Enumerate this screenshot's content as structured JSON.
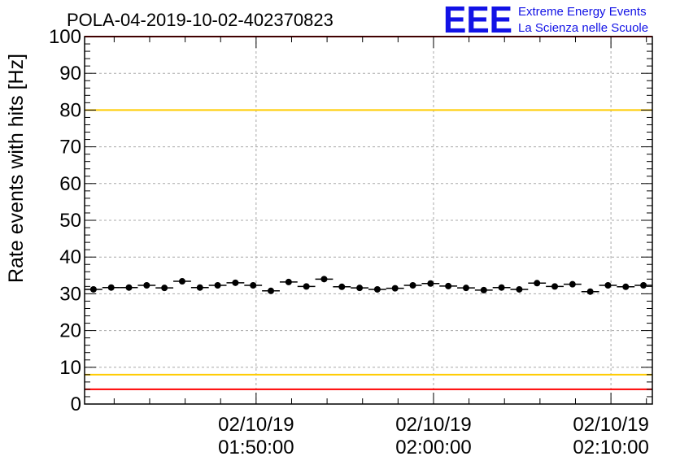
{
  "chart_data": {
    "type": "scatter",
    "title": "POLA-04-2019-10-02-402370823",
    "ylabel": "Rate events with hits [Hz]",
    "xlabel": "",
    "ylim": [
      0,
      100
    ],
    "yticks": [
      "0",
      "10",
      "20",
      "30",
      "40",
      "50",
      "60",
      "70",
      "80",
      "90",
      "100"
    ],
    "xlim": [
      "01:40:20",
      "02:12:20"
    ],
    "xticks": [
      {
        "time": "01:50:00",
        "date_label": "02/10/19",
        "time_label": "01:50:00"
      },
      {
        "time": "02:00:00",
        "date_label": "02/10/19",
        "time_label": "02:00:00"
      },
      {
        "time": "02:10:00",
        "date_label": "02/10/19",
        "time_label": "02:10:00"
      }
    ],
    "grid": true,
    "reference_lines": [
      {
        "y": 100,
        "color": "#ff0000"
      },
      {
        "y": 80,
        "color": "#ffcc00"
      },
      {
        "y": 8,
        "color": "#ffcc00"
      },
      {
        "y": 4,
        "color": "#ff0000"
      }
    ],
    "bin_width_seconds": 60,
    "series": [
      {
        "color": "#000000",
        "x": [
          "01:40:50",
          "01:41:50",
          "01:42:50",
          "01:43:50",
          "01:44:50",
          "01:45:50",
          "01:46:50",
          "01:47:50",
          "01:48:50",
          "01:49:50",
          "01:50:50",
          "01:51:50",
          "01:52:50",
          "01:53:50",
          "01:54:50",
          "01:55:50",
          "01:56:50",
          "01:57:50",
          "01:58:50",
          "01:59:50",
          "02:00:50",
          "02:01:50",
          "02:02:50",
          "02:03:50",
          "02:04:50",
          "02:05:50",
          "02:06:50",
          "02:07:50",
          "02:08:50",
          "02:09:50",
          "02:10:50",
          "02:11:50"
        ],
        "y": [
          31.2,
          31.7,
          31.7,
          32.3,
          31.6,
          33.4,
          31.7,
          32.3,
          33.0,
          32.3,
          30.8,
          33.2,
          32.0,
          34.0,
          31.9,
          31.6,
          31.2,
          31.5,
          32.3,
          32.8,
          32.1,
          31.6,
          31.0,
          31.7,
          31.2,
          32.9,
          32.0,
          32.6,
          30.6,
          32.3,
          31.9,
          32.3
        ]
      }
    ]
  },
  "logo": {
    "letters": "EEE",
    "line1": "Extreme Energy Events",
    "line2": "La Scienza nelle Scuole",
    "color": "#1212e6"
  }
}
